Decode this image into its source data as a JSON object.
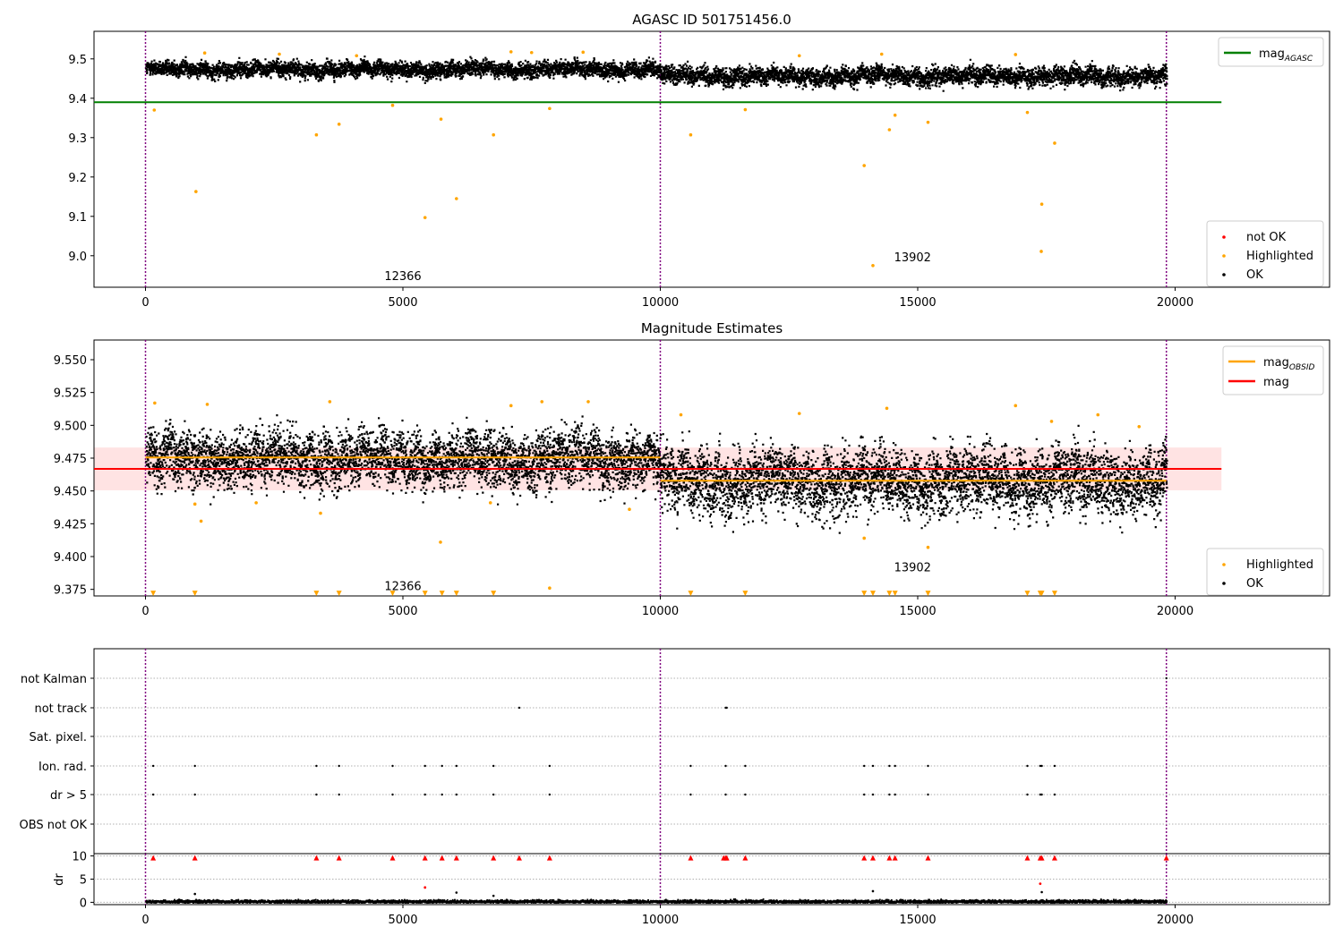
{
  "chart_data": [
    {
      "type": "scatter",
      "title": "AGASC ID 501751456.0",
      "xlabel": "",
      "ylabel": "",
      "xlim": [
        -1000,
        23000
      ],
      "ylim": [
        8.92,
        9.57
      ],
      "xticks": [
        0,
        5000,
        10000,
        15000,
        20000
      ],
      "yticks": [
        9.0,
        9.1,
        9.2,
        9.3,
        9.4,
        9.5
      ],
      "obs_boundaries": [
        0,
        10000,
        19830
      ],
      "obsid_labels": [
        {
          "text": "12366",
          "x": 5000,
          "y": 8.95
        },
        {
          "text": "13902",
          "x": 14900,
          "y": 8.997
        }
      ],
      "reference_lines": [
        {
          "name": "mag_AGASC",
          "value": 9.39,
          "x": [
            -1000,
            20900
          ],
          "color": "#008000"
        }
      ],
      "segments": [
        {
          "x": [
            0,
            10000
          ],
          "mean": 9.475,
          "spread": 0.012
        },
        {
          "x": [
            10000,
            19830
          ],
          "mean": 9.458,
          "spread": 0.014
        }
      ],
      "series": [
        {
          "name": "Highlighted",
          "color": "#ffa500",
          "points": [
            [
              170,
              9.37
            ],
            [
              980,
              9.163
            ],
            [
              3320,
              9.307
            ],
            [
              3760,
              9.334
            ],
            [
              4800,
              9.382
            ],
            [
              5430,
              9.097
            ],
            [
              5740,
              9.347
            ],
            [
              6040,
              9.145
            ],
            [
              6760,
              9.307
            ],
            [
              7850,
              9.374
            ],
            [
              10590,
              9.307
            ],
            [
              11650,
              9.371
            ],
            [
              13960,
              9.229
            ],
            [
              14130,
              8.975
            ],
            [
              14450,
              9.32
            ],
            [
              14560,
              9.357
            ],
            [
              15200,
              9.339
            ],
            [
              17130,
              9.364
            ],
            [
              17400,
              9.011
            ],
            [
              17410,
              9.131
            ],
            [
              17660,
              9.286
            ],
            [
              1150,
              9.515
            ],
            [
              2600,
              9.512
            ],
            [
              4100,
              9.508
            ],
            [
              7100,
              9.518
            ],
            [
              7500,
              9.516
            ],
            [
              8500,
              9.517
            ],
            [
              12700,
              9.508
            ],
            [
              14300,
              9.512
            ],
            [
              16900,
              9.511
            ]
          ]
        },
        {
          "name": "not OK",
          "color": "#ff0000",
          "points": []
        },
        {
          "name": "OK",
          "color": "#000000",
          "points": []
        }
      ],
      "legend_main": {
        "entries": [
          {
            "label": "mag",
            "sub": "AGASC",
            "color": "#008000"
          }
        ],
        "position": "top-right"
      },
      "legend_points": {
        "entries": [
          {
            "label": "not OK",
            "color": "#ff0000"
          },
          {
            "label": "Highlighted",
            "color": "#ffa500"
          },
          {
            "label": "OK",
            "color": "#000000"
          }
        ],
        "position": "lower-right"
      }
    },
    {
      "type": "scatter",
      "title": "Magnitude Estimates",
      "xlabel": "",
      "ylabel": "",
      "xlim": [
        -1000,
        23000
      ],
      "ylim": [
        9.37,
        9.565
      ],
      "xticks": [
        0,
        5000,
        10000,
        15000,
        20000
      ],
      "yticks": [
        9.375,
        9.4,
        9.425,
        9.45,
        9.475,
        9.5,
        9.525,
        9.55
      ],
      "obs_boundaries": [
        0,
        10000,
        19830
      ],
      "obsid_labels": [
        {
          "text": "12366",
          "x": 5000,
          "y": 9.378
        },
        {
          "text": "13902",
          "x": 14900,
          "y": 9.392
        }
      ],
      "reference_lines": [
        {
          "name": "mag",
          "value": 9.4668,
          "x": [
            -1000,
            20900
          ],
          "color": "#ff0000",
          "band": [
            9.4505,
            9.4831
          ]
        },
        {
          "name": "mag_OBSID",
          "value": 9.4755,
          "x": [
            0,
            10000
          ],
          "color": "#ffa500"
        },
        {
          "name": "mag_OBSID",
          "value": 9.4578,
          "x": [
            10000,
            19830
          ],
          "color": "#ffa500"
        }
      ],
      "segments": [
        {
          "x": [
            0,
            10000
          ],
          "mean": 9.475,
          "spread": 0.013
        },
        {
          "x": [
            10000,
            19830
          ],
          "mean": 9.458,
          "spread": 0.015
        }
      ],
      "series": [
        {
          "name": "Highlighted",
          "color": "#ffa500",
          "points": [
            [
              1080,
              9.427
            ],
            [
              960,
              9.44
            ],
            [
              5730,
              9.411
            ],
            [
              7850,
              9.376
            ],
            [
              13960,
              9.414
            ],
            [
              15200,
              9.407
            ],
            [
              9400,
              9.436
            ],
            [
              3400,
              9.433
            ],
            [
              2150,
              9.441
            ],
            [
              6700,
              9.441
            ],
            [
              180,
              9.517
            ],
            [
              1200,
              9.516
            ],
            [
              3580,
              9.518
            ],
            [
              7100,
              9.515
            ],
            [
              7700,
              9.518
            ],
            [
              8600,
              9.518
            ],
            [
              10400,
              9.508
            ],
            [
              12700,
              9.509
            ],
            [
              14400,
              9.513
            ],
            [
              16900,
              9.515
            ],
            [
              17600,
              9.503
            ],
            [
              18500,
              9.508
            ],
            [
              19300,
              9.499
            ]
          ]
        },
        {
          "name": "Highlighted (clipped)",
          "color": "#ffa500",
          "points": [
            [
              150,
              9.372
            ],
            [
              960,
              9.372
            ],
            [
              3320,
              9.372
            ],
            [
              3760,
              9.372
            ],
            [
              4800,
              9.372
            ],
            [
              5430,
              9.372
            ],
            [
              5760,
              9.372
            ],
            [
              6040,
              9.372
            ],
            [
              6760,
              9.372
            ],
            [
              10590,
              9.372
            ],
            [
              11650,
              9.372
            ],
            [
              13960,
              9.372
            ],
            [
              14130,
              9.372
            ],
            [
              14450,
              9.372
            ],
            [
              14560,
              9.372
            ],
            [
              15200,
              9.372
            ],
            [
              17130,
              9.372
            ],
            [
              17380,
              9.372
            ],
            [
              17410,
              9.372
            ],
            [
              17660,
              9.372
            ]
          ]
        },
        {
          "name": "OK",
          "color": "#000000",
          "points": []
        }
      ],
      "legend_main": {
        "entries": [
          {
            "label": "mag",
            "sub": "OBSID",
            "color": "#ffa500"
          },
          {
            "label": "mag",
            "sub": "",
            "color": "#ff0000"
          }
        ],
        "position": "top-right"
      },
      "legend_points": {
        "entries": [
          {
            "label": "Highlighted",
            "color": "#ffa500"
          },
          {
            "label": "OK",
            "color": "#000000"
          }
        ],
        "position": "lower-right"
      }
    },
    {
      "type": "scatter",
      "title": "",
      "xlabel": "",
      "ylabel": "",
      "xlim": [
        -1000,
        23000
      ],
      "obs_boundaries": [
        0,
        10000,
        19830
      ],
      "flag_rows": [
        {
          "label": "not Kalman",
          "points": [
            19830
          ]
        },
        {
          "label": "not track",
          "points": [
            7260,
            11270,
            11290
          ]
        },
        {
          "label": "Sat. pixel.",
          "points": []
        },
        {
          "label": "Ion. rad.",
          "points": [
            150,
            960,
            3320,
            3760,
            4800,
            5430,
            5760,
            6040,
            6760,
            7850,
            10590,
            11270,
            11650,
            13960,
            14130,
            14450,
            14560,
            15200,
            17130,
            17380,
            17410,
            17660
          ]
        },
        {
          "label": "dr > 5",
          "points": [
            150,
            960,
            3320,
            3760,
            4800,
            5430,
            5760,
            6040,
            6760,
            7850,
            10590,
            11270,
            11650,
            13960,
            14130,
            14450,
            14560,
            15200,
            17130,
            17380,
            17410,
            17660
          ]
        },
        {
          "label": "OBS not OK",
          "points": []
        }
      ],
      "dr_panel": {
        "ylabel": "dr",
        "ylim": [
          -0.5,
          10.5
        ],
        "yticks": [
          0,
          5,
          10
        ],
        "xticks": [
          0,
          5000,
          10000,
          15000,
          20000
        ],
        "clipped_points": [
          150,
          960,
          3320,
          3760,
          4800,
          5430,
          5760,
          6040,
          6760,
          7260,
          7850,
          10590,
          11230,
          11270,
          11290,
          11650,
          13960,
          14130,
          14450,
          14560,
          15200,
          17130,
          17380,
          17410,
          17660,
          19830
        ],
        "red_points": [
          [
            5430,
            3.2
          ],
          [
            17380,
            4.0
          ]
        ],
        "outliers": [
          [
            960,
            1.8
          ],
          [
            6040,
            2.1
          ],
          [
            14130,
            2.4
          ],
          [
            17410,
            2.2
          ],
          [
            6760,
            1.4
          ]
        ],
        "baseline": {
          "mean": 0.25,
          "spread": 0.18
        }
      }
    }
  ]
}
